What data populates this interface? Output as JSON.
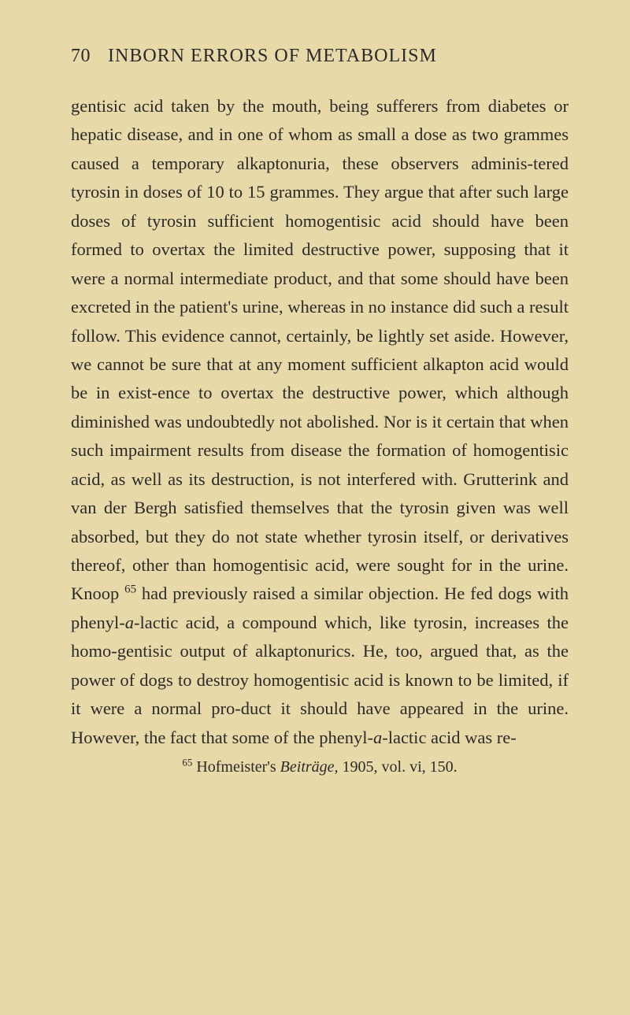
{
  "header": {
    "page_number": "70",
    "title": "INBORN ERRORS OF METABOLISM"
  },
  "body": {
    "text_part1": "gentisic acid taken by the mouth, being sufferers from diabetes or hepatic disease, and in one of whom as small a dose as two grammes caused a temporary alkaptonuria, these observers adminis-tered tyrosin in doses of 10 to 15 grammes. They argue that after such large doses of tyrosin sufficient homogentisic acid should have been formed to overtax the limited destructive power, supposing that it were a normal intermediate product, and that some should have been excreted in the patient's urine, whereas in no instance did such a result follow. This evidence cannot, certainly, be lightly set aside. However, we cannot be sure that at any moment sufficient alkapton acid would be in exist-ence to overtax the destructive power, which although diminished was undoubtedly not abolished. Nor is it certain that when such impairment results from disease the formation of homogentisic acid, as well as its destruction, is not interfered with. Grutterink and van der Bergh satisfied themselves that the tyrosin given was well absorbed, but they do not state whether tyrosin itself, or derivatives thereof, other than homogentisic acid, were sought for in the urine. Knoop ",
    "ref1": "65",
    "text_part2": " had previously raised a similar objection. He fed dogs with phenyl-",
    "alpha1": "a",
    "text_part3": "-lactic acid, a compound which, like tyrosin, increases the homo-gentisic output of alkaptonurics. He, too, argued that, as the power of dogs to destroy homogentisic acid is known to be limited, if it were a normal pro-duct it should have appeared in the urine. However, the fact that some of the phenyl-",
    "alpha2": "a",
    "text_part4": "-lactic acid was re-"
  },
  "footnote": {
    "num": "65",
    "author": "Hofmeister's ",
    "work": "Beiträge,",
    "citation": " 1905, vol. vi, 150."
  },
  "styles": {
    "background_color": "#e8d9a8",
    "text_color": "#2a2a2a",
    "body_fontsize": 22.5,
    "header_fontsize": 24,
    "footnote_fontsize": 20,
    "line_height": 1.62
  }
}
